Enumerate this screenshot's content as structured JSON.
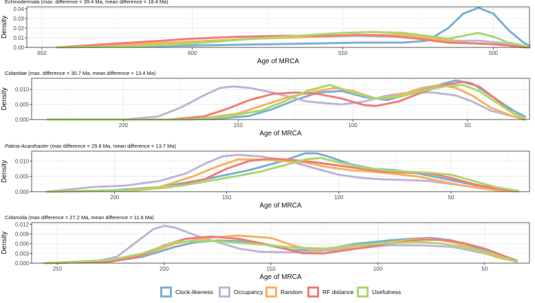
{
  "chart_data": [
    {
      "type": "line",
      "title": "Echinodermata (max. difference = 39.4 Ma, mean difference = 18.4 Ma)",
      "title_italic": "",
      "xlabel": "Age of MRCA",
      "ylabel": "Density",
      "x_reversed": true,
      "xlim": [
        655,
        488
      ],
      "ylim": [
        0,
        0.042
      ],
      "xticks": [
        650,
        600,
        550,
        500
      ],
      "xtick_labels": [
        "650",
        "600",
        "550",
        "500"
      ],
      "yticks": [
        0,
        0.01,
        0.02,
        0.03,
        0.04
      ],
      "ytick_labels": [
        "0.00",
        "0.01",
        "0.02",
        "0.03",
        "0.04"
      ],
      "grid": true,
      "series": [
        {
          "name": "Clock-likeness",
          "color": "#7bafd4",
          "x": [
            645,
            620,
            600,
            580,
            560,
            545,
            530,
            522,
            515,
            510,
            505,
            500,
            495,
            490,
            488
          ],
          "y": [
            0.0,
            0.001,
            0.002,
            0.003,
            0.004,
            0.005,
            0.005,
            0.007,
            0.02,
            0.035,
            0.041,
            0.035,
            0.018,
            0.005,
            0.002
          ]
        },
        {
          "name": "Occupancy",
          "color": "#beb5d8",
          "x": [
            645,
            620,
            600,
            580,
            560,
            545,
            530,
            520,
            512,
            505,
            498,
            490,
            488
          ],
          "y": [
            0.0,
            0.003,
            0.006,
            0.009,
            0.011,
            0.012,
            0.011,
            0.009,
            0.007,
            0.007,
            0.005,
            0.002,
            0.001
          ]
        },
        {
          "name": "Random",
          "color": "#f7b15e",
          "x": [
            645,
            630,
            615,
            600,
            580,
            560,
            545,
            530,
            520,
            510,
            505,
            500,
            495,
            490,
            488
          ],
          "y": [
            0.0,
            0.002,
            0.004,
            0.006,
            0.009,
            0.011,
            0.013,
            0.013,
            0.009,
            0.005,
            0.004,
            0.003,
            0.002,
            0.0,
            0.0
          ]
        },
        {
          "name": "RF distance",
          "color": "#f27d73",
          "x": [
            645,
            630,
            615,
            600,
            585,
            570,
            555,
            545,
            535,
            525,
            515,
            505,
            498,
            492,
            488
          ],
          "y": [
            0.0,
            0.003,
            0.006,
            0.009,
            0.011,
            0.012,
            0.012,
            0.013,
            0.012,
            0.009,
            0.005,
            0.004,
            0.003,
            0.001,
            0.0
          ]
        },
        {
          "name": "Usefulness",
          "color": "#a9d86e",
          "x": [
            645,
            620,
            600,
            580,
            565,
            550,
            540,
            530,
            520,
            515,
            510,
            505,
            500,
            495,
            490,
            488
          ],
          "y": [
            0.0,
            0.001,
            0.004,
            0.009,
            0.012,
            0.015,
            0.016,
            0.015,
            0.011,
            0.009,
            0.012,
            0.015,
            0.011,
            0.005,
            0.002,
            0.001
          ]
        }
      ]
    },
    {
      "type": "line",
      "title": "Cidaridae (max. difference = 30.7 Ma, mean difference = 13.4 Ma)",
      "title_italic": "",
      "xlabel": "Age of MRCA",
      "ylabel": "Density",
      "x_reversed": true,
      "xlim": [
        240,
        23
      ],
      "ylim": [
        0,
        0.0137
      ],
      "xticks": [
        200,
        150,
        100,
        50
      ],
      "xtick_labels": [
        "200",
        "150",
        "100",
        "50"
      ],
      "yticks": [
        0,
        0.005,
        0.01
      ],
      "ytick_labels": [
        "0.000",
        "0.005",
        "0.010"
      ],
      "grid": true,
      "series": [
        {
          "name": "Clock-likeness",
          "color": "#7bafd4",
          "x": [
            233,
            180,
            160,
            145,
            135,
            125,
            115,
            105,
            95,
            85,
            75,
            65,
            55,
            48,
            40,
            30,
            25
          ],
          "y": [
            0.0,
            0.0,
            0.0002,
            0.0012,
            0.0035,
            0.0065,
            0.009,
            0.0095,
            0.0075,
            0.0065,
            0.0085,
            0.011,
            0.013,
            0.012,
            0.008,
            0.003,
            0.001
          ]
        },
        {
          "name": "Occupancy",
          "color": "#beb5d8",
          "x": [
            233,
            200,
            185,
            175,
            165,
            158,
            152,
            145,
            135,
            120,
            105,
            95,
            85,
            75,
            65,
            55,
            48,
            40,
            30,
            25
          ],
          "y": [
            0.0,
            0.0,
            0.001,
            0.004,
            0.008,
            0.0105,
            0.011,
            0.0105,
            0.009,
            0.006,
            0.005,
            0.006,
            0.008,
            0.009,
            0.009,
            0.008,
            0.006,
            0.003,
            0.001,
            0.0
          ]
        },
        {
          "name": "Random",
          "color": "#f7b15e",
          "x": [
            233,
            180,
            165,
            150,
            140,
            128,
            115,
            108,
            100,
            90,
            80,
            70,
            62,
            55,
            48,
            40,
            30,
            25
          ],
          "y": [
            0.0,
            0.0,
            0.0005,
            0.002,
            0.0045,
            0.0075,
            0.0095,
            0.0105,
            0.0095,
            0.007,
            0.008,
            0.0105,
            0.0115,
            0.0105,
            0.008,
            0.004,
            0.001,
            0.0
          ]
        },
        {
          "name": "RF distance",
          "color": "#f27d73",
          "x": [
            233,
            180,
            165,
            155,
            145,
            135,
            125,
            115,
            105,
            95,
            90,
            80,
            70,
            60,
            52,
            45,
            38,
            30,
            25
          ],
          "y": [
            0.0,
            0.0,
            0.001,
            0.0035,
            0.0065,
            0.0085,
            0.009,
            0.0085,
            0.007,
            0.0048,
            0.0045,
            0.006,
            0.009,
            0.0115,
            0.0125,
            0.011,
            0.007,
            0.002,
            0.0005
          ]
        },
        {
          "name": "Usefulness",
          "color": "#a9d86e",
          "x": [
            233,
            170,
            155,
            140,
            130,
            120,
            110,
            100,
            90,
            80,
            70,
            60,
            52,
            45,
            38,
            30,
            25
          ],
          "y": [
            0.0,
            0.0,
            0.001,
            0.003,
            0.006,
            0.0095,
            0.0115,
            0.009,
            0.007,
            0.0075,
            0.0095,
            0.011,
            0.0115,
            0.0095,
            0.006,
            0.002,
            0.0005
          ]
        }
      ]
    },
    {
      "type": "line",
      "title": "(max difference = 29.8 Ma, mean difference = 13.7 Ma)",
      "title_italic": "Patiria-Acanthaster",
      "xlabel": "Age of MRCA",
      "ylabel": "Density",
      "x_reversed": true,
      "xlim": [
        237,
        15
      ],
      "ylim": [
        0,
        0.0132
      ],
      "xticks": [
        200,
        150,
        100,
        50
      ],
      "xtick_labels": [
        "200",
        "150",
        "100",
        "50"
      ],
      "yticks": [
        0,
        0.005,
        0.01
      ],
      "ytick_labels": [
        "0.000",
        "0.005",
        "0.010"
      ],
      "grid": true,
      "series": [
        {
          "name": "Clock-likeness",
          "color": "#7bafd4",
          "x": [
            230,
            200,
            180,
            160,
            140,
            125,
            115,
            110,
            105,
            95,
            85,
            75,
            65,
            55,
            45,
            35,
            25,
            20
          ],
          "y": [
            0.0,
            0.0005,
            0.0015,
            0.004,
            0.007,
            0.01,
            0.0125,
            0.0125,
            0.0115,
            0.009,
            0.0075,
            0.007,
            0.006,
            0.0045,
            0.003,
            0.0015,
            0.0005,
            0.0002
          ]
        },
        {
          "name": "Occupancy",
          "color": "#beb5d8",
          "x": [
            230,
            210,
            195,
            180,
            168,
            160,
            152,
            145,
            135,
            120,
            110,
            100,
            90,
            80,
            70,
            60,
            50,
            40,
            30,
            20
          ],
          "y": [
            0.0,
            0.0015,
            0.002,
            0.0035,
            0.006,
            0.009,
            0.0115,
            0.012,
            0.0115,
            0.0095,
            0.0075,
            0.0055,
            0.0045,
            0.004,
            0.0038,
            0.0035,
            0.0025,
            0.0015,
            0.0005,
            0.0002
          ]
        },
        {
          "name": "Random",
          "color": "#f7b15e",
          "x": [
            230,
            195,
            180,
            165,
            155,
            145,
            135,
            125,
            115,
            105,
            95,
            85,
            75,
            65,
            55,
            45,
            35,
            25,
            20
          ],
          "y": [
            0.0,
            0.0005,
            0.0015,
            0.005,
            0.008,
            0.0105,
            0.0105,
            0.01,
            0.0095,
            0.008,
            0.007,
            0.0065,
            0.0058,
            0.005,
            0.0035,
            0.002,
            0.001,
            0.0003,
            0.0001
          ]
        },
        {
          "name": "RF distance",
          "color": "#f27d73",
          "x": [
            230,
            190,
            175,
            160,
            150,
            140,
            130,
            120,
            110,
            100,
            90,
            80,
            70,
            60,
            50,
            40,
            30,
            20
          ],
          "y": [
            0.0,
            0.0005,
            0.0015,
            0.004,
            0.0075,
            0.01,
            0.0108,
            0.0103,
            0.0095,
            0.0085,
            0.0075,
            0.0065,
            0.0062,
            0.006,
            0.0045,
            0.0025,
            0.001,
            0.0002
          ]
        },
        {
          "name": "Usefulness",
          "color": "#a9d86e",
          "x": [
            230,
            190,
            170,
            150,
            135,
            125,
            115,
            108,
            100,
            90,
            80,
            70,
            60,
            50,
            40,
            30,
            20
          ],
          "y": [
            0.0,
            0.0005,
            0.002,
            0.0045,
            0.0065,
            0.0085,
            0.0105,
            0.011,
            0.0095,
            0.008,
            0.007,
            0.0065,
            0.0062,
            0.0055,
            0.0035,
            0.0015,
            0.0003
          ]
        }
      ]
    },
    {
      "type": "line",
      "title": "Cidaroida (max difference = 27.2 Ma, mean difference = 11.6 Ma)",
      "title_italic": "",
      "xlabel": "Age of MRCA",
      "ylabel": "Density",
      "x_reversed": true,
      "xlim": [
        262,
        29
      ],
      "ylim": [
        0,
        0.0125
      ],
      "xticks": [
        250,
        200,
        150,
        100,
        50
      ],
      "xtick_labels": [
        "250",
        "200",
        "150",
        "100",
        "50"
      ],
      "yticks": [
        0,
        0.003,
        0.006,
        0.009,
        0.012
      ],
      "ytick_labels": [
        "0.000",
        "0.003",
        "0.006",
        "0.009",
        "0.012"
      ],
      "grid": true,
      "series": [
        {
          "name": "Clock-likeness",
          "color": "#7bafd4",
          "x": [
            256,
            225,
            210,
            195,
            185,
            175,
            165,
            155,
            140,
            125,
            110,
            95,
            85,
            75,
            65,
            55,
            45,
            35
          ],
          "y": [
            0.0,
            0.0005,
            0.002,
            0.005,
            0.0065,
            0.007,
            0.0068,
            0.006,
            0.004,
            0.0042,
            0.006,
            0.007,
            0.0075,
            0.0078,
            0.007,
            0.005,
            0.0025,
            0.0005
          ]
        },
        {
          "name": "Occupancy",
          "color": "#beb5d8",
          "x": [
            256,
            232,
            222,
            212,
            205,
            200,
            195,
            185,
            175,
            165,
            155,
            140,
            125,
            110,
            95,
            80,
            65,
            50,
            40,
            35
          ],
          "y": [
            0.0,
            0.0005,
            0.002,
            0.007,
            0.0105,
            0.0115,
            0.011,
            0.0085,
            0.0065,
            0.0045,
            0.0035,
            0.0033,
            0.0038,
            0.0045,
            0.0055,
            0.0055,
            0.005,
            0.003,
            0.0012,
            0.0005
          ]
        },
        {
          "name": "Random",
          "color": "#f7b15e",
          "x": [
            256,
            225,
            210,
            195,
            180,
            165,
            150,
            140,
            130,
            115,
            100,
            85,
            75,
            65,
            55,
            45,
            35
          ],
          "y": [
            0.0,
            0.0005,
            0.0025,
            0.006,
            0.0078,
            0.0085,
            0.0078,
            0.0055,
            0.004,
            0.0048,
            0.006,
            0.0072,
            0.0075,
            0.0065,
            0.0045,
            0.002,
            0.0005
          ]
        },
        {
          "name": "RF distance",
          "color": "#f27d73",
          "x": [
            256,
            225,
            212,
            200,
            190,
            178,
            165,
            150,
            135,
            125,
            110,
            95,
            80,
            70,
            60,
            50,
            40,
            35
          ],
          "y": [
            0.0,
            0.0005,
            0.002,
            0.0055,
            0.0075,
            0.0082,
            0.0075,
            0.0055,
            0.003,
            0.003,
            0.0045,
            0.006,
            0.0072,
            0.0072,
            0.0062,
            0.0045,
            0.002,
            0.0008
          ]
        },
        {
          "name": "Usefulness",
          "color": "#a9d86e",
          "x": [
            256,
            225,
            210,
            195,
            180,
            170,
            160,
            150,
            140,
            125,
            110,
            95,
            80,
            70,
            60,
            50,
            40,
            35
          ],
          "y": [
            0.0,
            0.001,
            0.003,
            0.0065,
            0.007,
            0.0065,
            0.006,
            0.0055,
            0.0048,
            0.0045,
            0.0055,
            0.0062,
            0.0065,
            0.006,
            0.005,
            0.0035,
            0.0015,
            0.0005
          ]
        }
      ]
    }
  ],
  "legend": {
    "placement": "bottom",
    "items": [
      {
        "label": "Clock-likeness",
        "color": "#7bafd4"
      },
      {
        "label": "Occupancy",
        "color": "#beb5d8"
      },
      {
        "label": "Random",
        "color": "#f7b15e"
      },
      {
        "label": "RF distance",
        "color": "#f27d73"
      },
      {
        "label": "Usefulness",
        "color": "#a9d86e"
      }
    ]
  }
}
